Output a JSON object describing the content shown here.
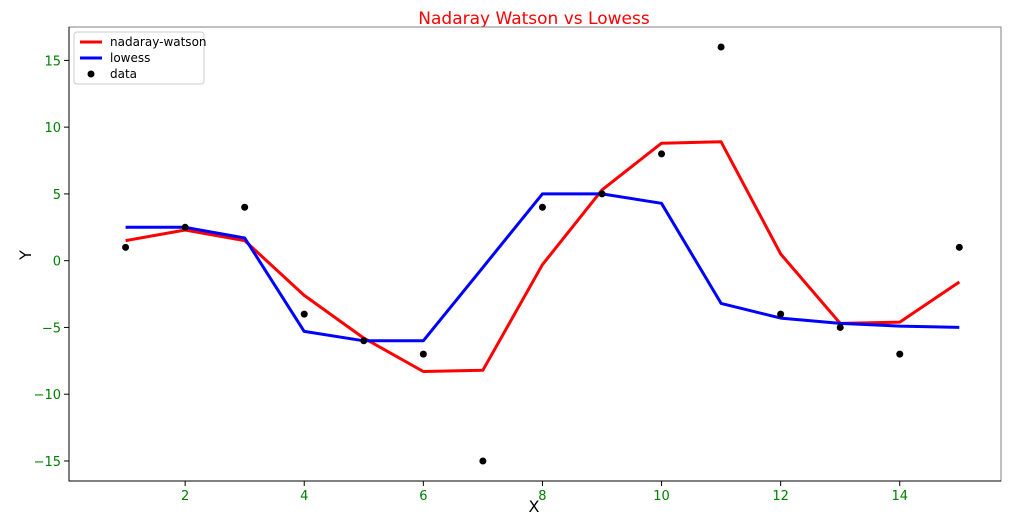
{
  "chart_data": {
    "type": "line",
    "title": "Nadaray Watson vs Lowess",
    "title_color": "#ff0000",
    "xlabel": "X",
    "ylabel": "Y",
    "tick_color": "#008000",
    "xlim": [
      0.05,
      15.7
    ],
    "ylim": [
      -16.5,
      17.5
    ],
    "xticks": [
      2,
      4,
      6,
      8,
      10,
      12,
      14
    ],
    "yticks": [
      -15,
      -10,
      -5,
      0,
      5,
      10,
      15
    ],
    "grid": false,
    "legend_position": "top-left",
    "x": [
      1,
      2,
      3,
      4,
      5,
      6,
      7,
      8,
      9,
      10,
      11,
      12,
      13,
      14,
      15
    ],
    "series": [
      {
        "name": "nadaray-watson",
        "kind": "line",
        "color": "#ff0000",
        "values": [
          1.5,
          2.3,
          1.5,
          -2.6,
          -5.8,
          -8.3,
          -8.2,
          -0.3,
          5.3,
          8.8,
          8.9,
          0.5,
          -4.7,
          -4.6,
          -1.6
        ]
      },
      {
        "name": "lowess",
        "kind": "line",
        "color": "#0000ff",
        "values": [
          2.5,
          2.5,
          1.7,
          -5.3,
          -6.0,
          -6.0,
          -0.5,
          5.0,
          5.0,
          4.3,
          -3.2,
          -4.3,
          -4.7,
          -4.9,
          -5.0
        ]
      },
      {
        "name": "data",
        "kind": "scatter",
        "color": "#000000",
        "values": [
          1,
          2.5,
          4,
          -4,
          -6,
          -7,
          -15,
          4,
          5,
          8,
          16,
          -4,
          -5,
          -7,
          1
        ]
      }
    ]
  }
}
